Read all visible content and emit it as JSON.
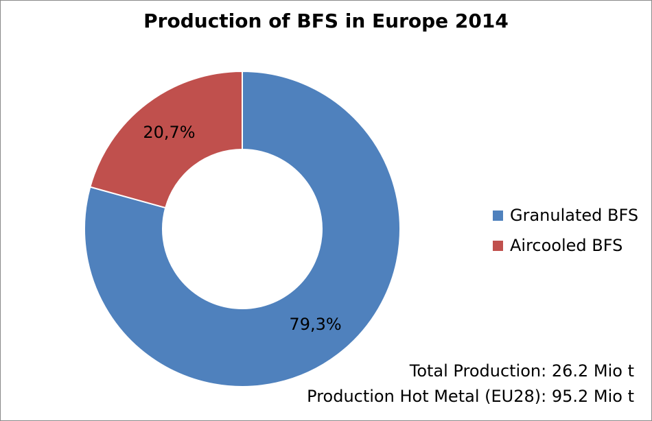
{
  "chart_data": {
    "type": "pie",
    "style": "donut",
    "title": "Production of BFS in Europe 2014",
    "series": [
      {
        "name": "Granulated BFS",
        "value": 79.3,
        "label": "79,3%",
        "color": "#4f81bd"
      },
      {
        "name": "Aircooled BFS",
        "value": 20.7,
        "label": "20,7%",
        "color": "#c0504d"
      }
    ],
    "legend_position": "right",
    "annotations": [
      "Total Production: 26.2 Mio t",
      "Production Hot Metal (EU28): 95.2 Mio t"
    ]
  }
}
